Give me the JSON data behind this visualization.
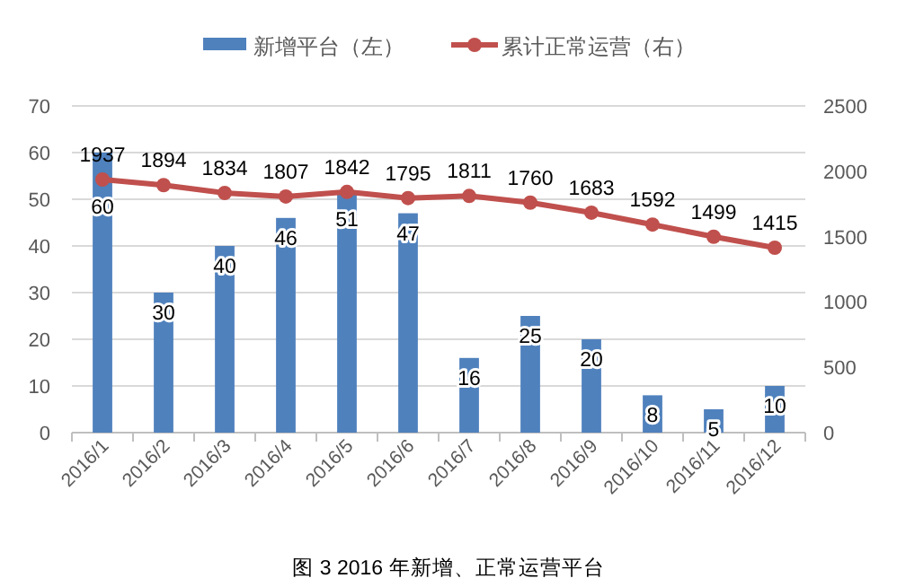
{
  "chart_data": {
    "type": "bar",
    "categories": [
      "2016/1",
      "2016/2",
      "2016/3",
      "2016/4",
      "2016/5",
      "2016/6",
      "2016/7",
      "2016/8",
      "2016/9",
      "2016/10",
      "2016/11",
      "2016/12"
    ],
    "series": [
      {
        "name": "新增平台（左）",
        "type": "bar",
        "color": "#4f81bd",
        "values": [
          60,
          30,
          40,
          46,
          51,
          47,
          16,
          25,
          20,
          8,
          5,
          10
        ]
      },
      {
        "name": "累计正常运营（右）",
        "type": "line",
        "axis": "y2",
        "color": "#c0504d",
        "marker": "circle",
        "values": [
          1937,
          1894,
          1834,
          1807,
          1842,
          1795,
          1811,
          1760,
          1683,
          1592,
          1499,
          1415
        ]
      }
    ],
    "ylim": [
      0,
      70
    ],
    "yticks": [
      0,
      10,
      20,
      30,
      40,
      50,
      60,
      70
    ],
    "y2lim": [
      0,
      2500
    ],
    "y2ticks": [
      0,
      500,
      1000,
      1500,
      2000,
      2500
    ],
    "grid": "y",
    "legend": "top",
    "data_labels": true,
    "annotations": [
      "图 3 2016 年新增、正常运营平台"
    ]
  }
}
